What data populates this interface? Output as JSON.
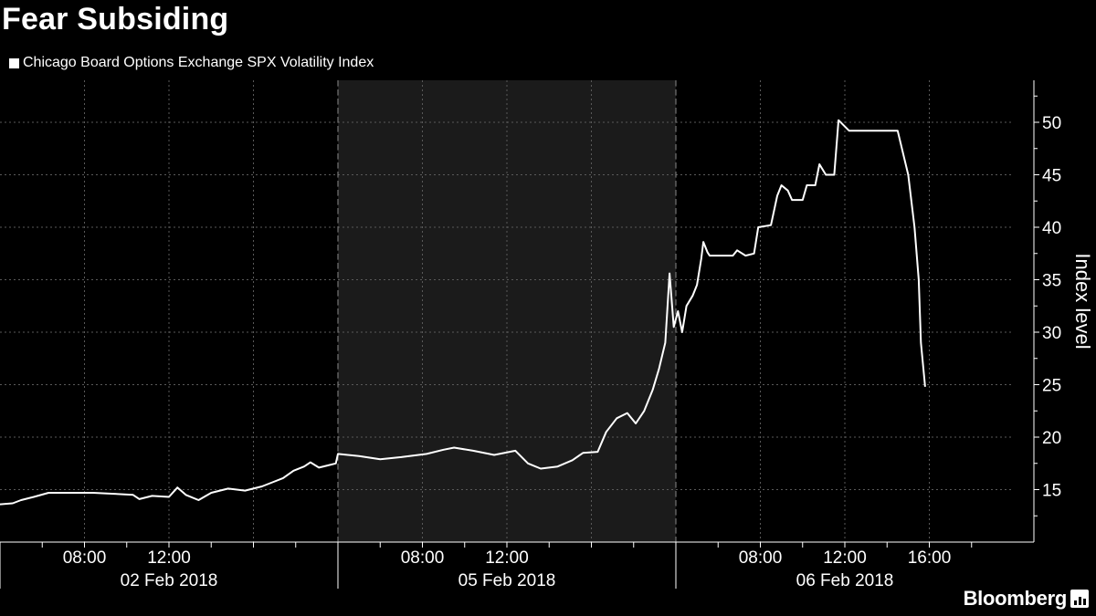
{
  "title": "Fear Subsiding",
  "legend": "Chicago Board Options Exchange SPX Volatility Index",
  "brand": "Bloomberg",
  "brand_icon": "bloomberg-bar-chart-icon",
  "colors": {
    "background": "#000000",
    "line": "#ffffff",
    "shade": "#1b1b1b",
    "grid": "#5a5a5a"
  },
  "chart_data": {
    "type": "line",
    "title": "Fear Subsiding",
    "ylabel": "Index level",
    "ylim": [
      10,
      54
    ],
    "yticks": [
      15,
      20,
      25,
      30,
      35,
      40,
      45,
      50
    ],
    "y_axis_side": "right",
    "x_unit": "hours since session start (04:00)",
    "panels": [
      {
        "date": "02 Feb 2018",
        "shaded": false,
        "time_ticks": [
          "08:00",
          "12:00"
        ],
        "hour_range": [
          4,
          20
        ]
      },
      {
        "date": "05 Feb 2018",
        "shaded": true,
        "time_ticks": [
          "08:00",
          "12:00"
        ],
        "hour_range": [
          4,
          20
        ]
      },
      {
        "date": "06 Feb 2018",
        "shaded": false,
        "time_ticks": [
          "08:00",
          "12:00",
          "16:00"
        ],
        "hour_range": [
          4,
          20
        ]
      }
    ],
    "series": [
      {
        "name": "Chicago Board Options Exchange SPX Volatility Index",
        "points": [
          [
            0,
            13.6
          ],
          [
            0.6,
            13.7
          ],
          [
            1.0,
            14.0
          ],
          [
            1.6,
            14.3
          ],
          [
            2.3,
            14.7
          ],
          [
            3.2,
            14.7
          ],
          [
            4.4,
            14.7
          ],
          [
            5.4,
            14.6
          ],
          [
            6.3,
            14.5
          ],
          [
            6.6,
            14.1
          ],
          [
            7.2,
            14.4
          ],
          [
            8.0,
            14.3
          ],
          [
            8.4,
            15.2
          ],
          [
            8.8,
            14.5
          ],
          [
            9.4,
            14.0
          ],
          [
            10.0,
            14.7
          ],
          [
            10.8,
            15.1
          ],
          [
            11.6,
            14.9
          ],
          [
            12.4,
            15.3
          ],
          [
            12.9,
            15.7
          ],
          [
            13.4,
            16.1
          ],
          [
            13.9,
            16.8
          ],
          [
            14.4,
            17.2
          ],
          [
            14.7,
            17.6
          ],
          [
            15.1,
            17.1
          ],
          [
            15.5,
            17.3
          ],
          [
            15.9,
            17.5
          ],
          [
            16.0,
            18.4
          ],
          [
            17.0,
            18.2
          ],
          [
            18.0,
            17.9
          ],
          [
            19.0,
            18.1
          ],
          [
            20.2,
            18.4
          ],
          [
            21.0,
            18.8
          ],
          [
            21.5,
            19.0
          ],
          [
            22.4,
            18.7
          ],
          [
            23.4,
            18.3
          ],
          [
            24.4,
            18.7
          ],
          [
            25.0,
            17.5
          ],
          [
            25.6,
            17.0
          ],
          [
            26.4,
            17.2
          ],
          [
            27.1,
            17.8
          ],
          [
            27.6,
            18.5
          ],
          [
            28.3,
            18.6
          ],
          [
            28.7,
            20.5
          ],
          [
            29.2,
            21.8
          ],
          [
            29.7,
            22.3
          ],
          [
            30.1,
            21.3
          ],
          [
            30.5,
            22.5
          ],
          [
            30.9,
            24.5
          ],
          [
            31.2,
            26.5
          ],
          [
            31.5,
            29.0
          ],
          [
            31.7,
            35.6
          ],
          [
            31.9,
            30.5
          ],
          [
            32.1,
            32.0
          ],
          [
            32.3,
            30.0
          ],
          [
            32.5,
            32.5
          ],
          [
            32.8,
            33.5
          ],
          [
            33.0,
            34.5
          ],
          [
            33.2,
            37.0
          ],
          [
            33.3,
            38.6
          ],
          [
            33.5,
            37.6
          ],
          [
            33.6,
            37.3
          ],
          [
            34.7,
            37.3
          ],
          [
            34.9,
            37.8
          ],
          [
            35.3,
            37.3
          ],
          [
            35.7,
            37.5
          ],
          [
            35.9,
            40.0
          ],
          [
            36.5,
            40.2
          ],
          [
            36.8,
            43.0
          ],
          [
            37.0,
            44.0
          ],
          [
            37.3,
            43.5
          ],
          [
            37.5,
            42.6
          ],
          [
            38.0,
            42.6
          ],
          [
            38.2,
            44.0
          ],
          [
            38.6,
            44.0
          ],
          [
            38.8,
            46.0
          ],
          [
            39.1,
            45.0
          ],
          [
            39.5,
            45.0
          ],
          [
            39.7,
            50.2
          ],
          [
            40.2,
            49.2
          ],
          [
            42.5,
            49.2
          ],
          [
            43.0,
            45.0
          ],
          [
            43.3,
            40.0
          ],
          [
            43.5,
            35.0
          ],
          [
            43.6,
            29.0
          ],
          [
            43.8,
            24.8
          ]
        ]
      }
    ]
  }
}
